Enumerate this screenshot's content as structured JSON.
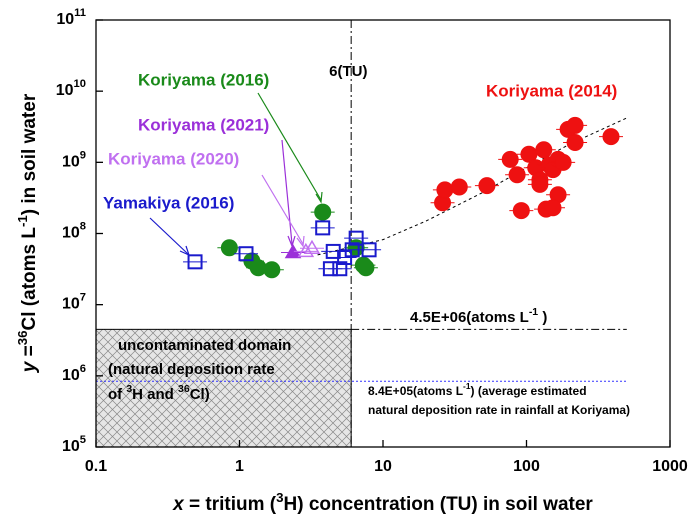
{
  "chart_data": {
    "type": "scatter",
    "xlabel_parts": [
      "x",
      " = tritium (",
      "3",
      "H) concentration (TU) in soil water"
    ],
    "ylabel_parts": [
      "y",
      " =",
      "36",
      "Cl (atoms L",
      "-1",
      ") in soil water"
    ],
    "xscale": "log",
    "yscale": "log",
    "xlim": [
      0.1,
      1000
    ],
    "ylim": [
      100000,
      100000000000
    ],
    "xticks": [
      0.1,
      1,
      10,
      100,
      1000
    ],
    "yticks": [
      {
        "value": 100000,
        "label": "10",
        "exponent": "5"
      },
      {
        "value": 1000000,
        "label": "10",
        "exponent": "6"
      },
      {
        "value": 10000000,
        "label": "10",
        "exponent": "7"
      },
      {
        "value": 100000000,
        "label": "10",
        "exponent": "8"
      },
      {
        "value": 1000000000,
        "label": "10",
        "exponent": "9"
      },
      {
        "value": 10000000000,
        "label": "10",
        "exponent": "10"
      },
      {
        "value": 100000000000,
        "label": "10",
        "exponent": "11"
      }
    ],
    "series": [
      {
        "name": "Koriyama (2014)",
        "color": "#ee1111",
        "marker": "circle",
        "filled": true,
        "x": [
          26,
          27,
          34,
          53,
          77,
          86,
          92,
          104,
          116,
          124,
          132,
          137,
          144,
          153,
          166,
          166,
          180,
          195,
          218,
          218,
          388,
          153,
          124
        ],
        "y": [
          270000000,
          410000000,
          450000000,
          470000000,
          1100000000,
          670000000,
          210000000,
          1300000000,
          840000000,
          570000000,
          1500000000,
          220000000,
          920000000,
          790000000,
          350000000,
          1100000000,
          1000000000,
          2900000000,
          3300000000,
          1900000000,
          2300000000,
          230000000,
          490000000
        ]
      },
      {
        "name": "Koriyama (2016)",
        "color": "#1a8a1a",
        "marker": "circle",
        "filled": true,
        "x": [
          0.85,
          1.22,
          1.35,
          1.68,
          3.8,
          6.5,
          7.3,
          7.6
        ],
        "y": [
          63000000,
          41000000,
          33000000,
          31000000,
          200000000,
          63000000,
          36000000,
          33000000
        ]
      },
      {
        "name": "Koriyama (2021)",
        "color": "#9b30d9",
        "marker": "triangle",
        "filled": true,
        "x": [
          2.36
        ],
        "y": [
          54000000
        ]
      },
      {
        "name": "Koriyama (2020)",
        "color": "#c070f0",
        "marker": "triangle",
        "filled": false,
        "x": [
          2.9,
          3.2
        ],
        "y": [
          56000000,
          62000000
        ]
      },
      {
        "name": "Yamakiya (2016)",
        "color": "#1a1acc",
        "marker": "square",
        "filled": false,
        "x": [
          0.49,
          1.11,
          3.8,
          4.5,
          4.3,
          5.0,
          5.4,
          6.1,
          6.5,
          8.0
        ],
        "y": [
          40000000,
          52000000,
          120000000,
          56000000,
          32000000,
          32000000,
          46000000,
          59000000,
          86000000,
          59000000
        ]
      }
    ],
    "trend_line": {
      "x": [
        3.5,
        10,
        20,
        50,
        100,
        200,
        500
      ],
      "y": [
        50000000,
        82000000,
        150000000,
        380000000,
        840000000,
        1800000000,
        4200000000
      ]
    },
    "tu_line": {
      "value": 6,
      "label": "6(TU)"
    },
    "upper_line": {
      "value": 4500000,
      "x_end": 500,
      "label_parts": [
        "4.5E+06(atoms L",
        "-1",
        " )"
      ]
    },
    "rain_line": {
      "value": 840000,
      "x_end": 500,
      "label_parts": [
        "8.4E+05(atoms L",
        "-1",
        ") (average estimated"
      ],
      "label_line2": "natural deposition rate in rainfall at Koriyama)"
    },
    "domain": {
      "lines": [
        [
          "uncontaminated domain"
        ],
        [
          "(natural deposition rate"
        ],
        [
          "of ",
          "3",
          "H and ",
          "36",
          "Cl)"
        ]
      ]
    }
  }
}
